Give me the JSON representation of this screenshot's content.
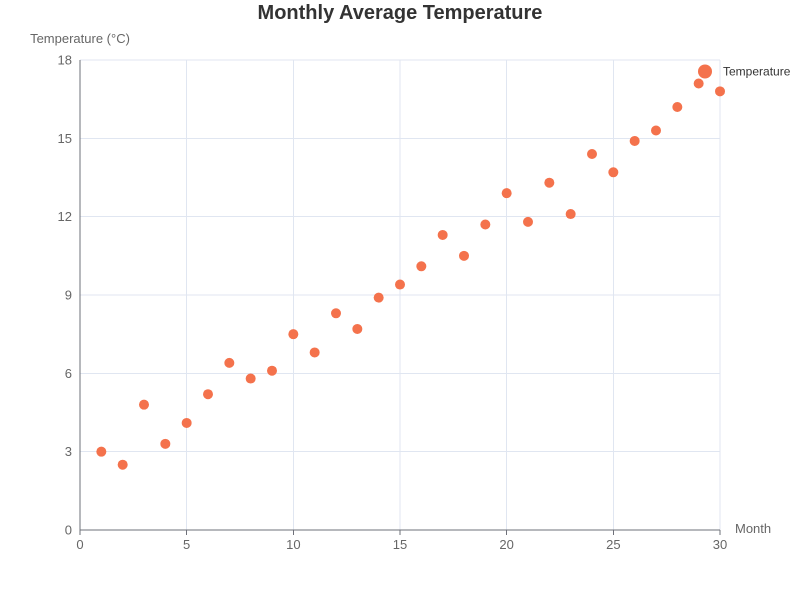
{
  "chart_data": {
    "type": "scatter",
    "title": "Monthly Average Temperature",
    "xlabel": "Month",
    "ylabel": "Temperature (°C)",
    "xlim": [
      0,
      30
    ],
    "ylim": [
      0,
      18
    ],
    "x_ticks": [
      0,
      5,
      10,
      15,
      20,
      25,
      30
    ],
    "y_ticks": [
      0,
      3,
      6,
      9,
      12,
      15,
      18
    ],
    "grid": true,
    "legend_position": "top-right",
    "series": [
      {
        "name": "Temperature",
        "color": "#f4724c",
        "points": [
          {
            "x": 1,
            "y": 3.0
          },
          {
            "x": 2,
            "y": 2.5
          },
          {
            "x": 3,
            "y": 4.8
          },
          {
            "x": 4,
            "y": 3.3
          },
          {
            "x": 5,
            "y": 4.1
          },
          {
            "x": 6,
            "y": 5.2
          },
          {
            "x": 7,
            "y": 6.4
          },
          {
            "x": 8,
            "y": 5.8
          },
          {
            "x": 9,
            "y": 6.1
          },
          {
            "x": 10,
            "y": 7.5
          },
          {
            "x": 11,
            "y": 6.8
          },
          {
            "x": 12,
            "y": 8.3
          },
          {
            "x": 13,
            "y": 7.7
          },
          {
            "x": 14,
            "y": 8.9
          },
          {
            "x": 15,
            "y": 9.4
          },
          {
            "x": 16,
            "y": 10.1
          },
          {
            "x": 17,
            "y": 11.3
          },
          {
            "x": 18,
            "y": 10.5
          },
          {
            "x": 19,
            "y": 11.7
          },
          {
            "x": 20,
            "y": 12.9
          },
          {
            "x": 21,
            "y": 11.8
          },
          {
            "x": 22,
            "y": 13.3
          },
          {
            "x": 23,
            "y": 12.1
          },
          {
            "x": 24,
            "y": 14.4
          },
          {
            "x": 25,
            "y": 13.7
          },
          {
            "x": 26,
            "y": 14.9
          },
          {
            "x": 27,
            "y": 15.3
          },
          {
            "x": 28,
            "y": 16.2
          },
          {
            "x": 29,
            "y": 17.1
          },
          {
            "x": 30,
            "y": 16.8
          }
        ]
      }
    ]
  }
}
